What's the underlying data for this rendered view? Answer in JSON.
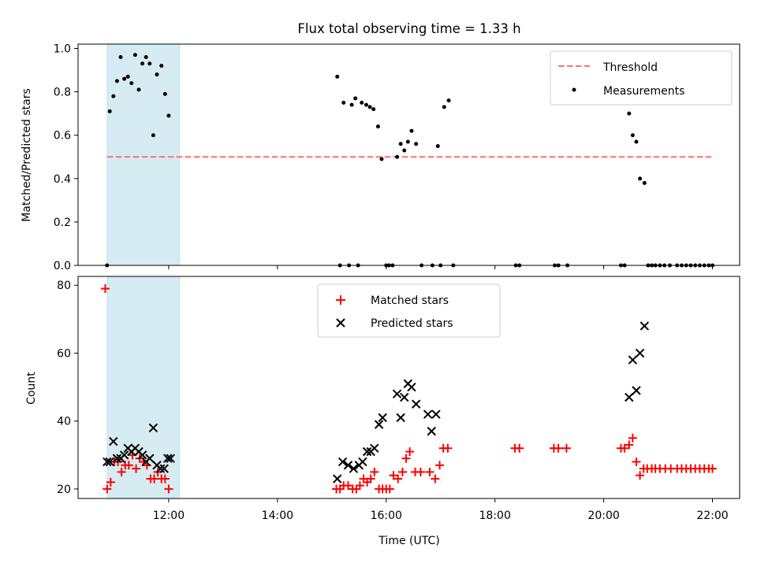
{
  "figure": {
    "title": "Flux total observing time = 1.33 h",
    "xlabel": "Time (UTC)"
  },
  "chart_data": [
    {
      "type": "scatter",
      "ylabel": "Matched/Predicted stars",
      "xlim": [
        "10:20",
        "22:30"
      ],
      "ylim": [
        0,
        1.02
      ],
      "yticks": [
        "0.0",
        "0.2",
        "0.4",
        "0.6",
        "0.8",
        "1.0"
      ],
      "xticks": [
        "12:00",
        "14:00",
        "16:00",
        "18:00",
        "20:00",
        "22:00"
      ],
      "shaded_span": [
        "10:52",
        "12:12"
      ],
      "grid": false,
      "legend": {
        "position": "top-right",
        "entries": [
          "Threshold",
          "Measurements"
        ]
      },
      "threshold": {
        "name": "Threshold",
        "value": 0.5,
        "x_range": [
          "10:52",
          "22:00"
        ],
        "color": "#ff6f6f"
      },
      "series": [
        {
          "name": "Measurements",
          "color": "#000000",
          "points": [
            [
              "10:52",
              0.0
            ],
            [
              "10:55",
              0.71
            ],
            [
              "10:59",
              0.78
            ],
            [
              "11:03",
              0.85
            ],
            [
              "11:07",
              0.96
            ],
            [
              "11:11",
              0.86
            ],
            [
              "11:15",
              0.87
            ],
            [
              "11:19",
              0.84
            ],
            [
              "11:23",
              0.97
            ],
            [
              "11:27",
              0.81
            ],
            [
              "11:31",
              0.93
            ],
            [
              "11:35",
              0.96
            ],
            [
              "11:39",
              0.93
            ],
            [
              "11:43",
              0.6
            ],
            [
              "11:47",
              0.88
            ],
            [
              "11:52",
              0.92
            ],
            [
              "11:56",
              0.79
            ],
            [
              "12:00",
              0.69
            ],
            [
              "15:06",
              0.87
            ],
            [
              "15:09",
              0.0
            ],
            [
              "15:13",
              0.75
            ],
            [
              "15:19",
              0.0
            ],
            [
              "15:22",
              0.74
            ],
            [
              "15:26",
              0.77
            ],
            [
              "15:29",
              0.0
            ],
            [
              "15:33",
              0.75
            ],
            [
              "15:38",
              0.74
            ],
            [
              "15:42",
              0.73
            ],
            [
              "15:46",
              0.72
            ],
            [
              "15:51",
              0.64
            ],
            [
              "15:55",
              0.49
            ],
            [
              "16:00",
              0.0
            ],
            [
              "16:03",
              0.0
            ],
            [
              "16:07",
              0.0
            ],
            [
              "16:12",
              0.5
            ],
            [
              "16:16",
              0.56
            ],
            [
              "16:20",
              0.53
            ],
            [
              "16:24",
              0.57
            ],
            [
              "16:28",
              0.62
            ],
            [
              "16:33",
              0.56
            ],
            [
              "16:39",
              0.0
            ],
            [
              "16:51",
              0.0
            ],
            [
              "16:57",
              0.55
            ],
            [
              "17:00",
              0.0
            ],
            [
              "17:04",
              0.73
            ],
            [
              "17:09",
              0.76
            ],
            [
              "17:14",
              0.0
            ],
            [
              "18:23",
              0.0
            ],
            [
              "18:27",
              0.0
            ],
            [
              "19:06",
              0.0
            ],
            [
              "19:10",
              0.0
            ],
            [
              "19:20",
              0.0
            ],
            [
              "20:19",
              0.0
            ],
            [
              "20:23",
              0.0
            ],
            [
              "20:28",
              0.7
            ],
            [
              "20:32",
              0.6
            ],
            [
              "20:36",
              0.57
            ],
            [
              "20:40",
              0.4
            ],
            [
              "20:45",
              0.38
            ],
            [
              "20:49",
              0.0
            ],
            [
              "20:53",
              0.0
            ],
            [
              "20:57",
              0.0
            ],
            [
              "21:02",
              0.0
            ],
            [
              "21:07",
              0.0
            ],
            [
              "21:13",
              0.0
            ],
            [
              "21:21",
              0.0
            ],
            [
              "21:26",
              0.0
            ],
            [
              "21:31",
              0.0
            ],
            [
              "21:36",
              0.0
            ],
            [
              "21:41",
              0.0
            ],
            [
              "21:46",
              0.0
            ],
            [
              "21:51",
              0.0
            ],
            [
              "21:56",
              0.0
            ],
            [
              "22:00",
              0.0
            ]
          ]
        }
      ]
    },
    {
      "type": "scatter",
      "ylabel": "Count",
      "xlabel": "Time (UTC)",
      "xlim": [
        "10:20",
        "22:30"
      ],
      "ylim": [
        17.2,
        82.6
      ],
      "yticks": [
        "20",
        "40",
        "60",
        "80"
      ],
      "xticks": [
        "12:00",
        "14:00",
        "16:00",
        "18:00",
        "20:00",
        "22:00"
      ],
      "shaded_span": [
        "10:52",
        "12:12"
      ],
      "grid": false,
      "legend": {
        "position": "top-center",
        "entries": [
          "Matched stars",
          "Predicted stars"
        ]
      },
      "series": [
        {
          "name": "Matched stars",
          "marker": "plus",
          "color": "#ff0000",
          "points": [
            [
              "10:50",
              79
            ],
            [
              "10:52",
              20
            ],
            [
              "10:56",
              22
            ],
            [
              "11:00",
              28
            ],
            [
              "11:04",
              28
            ],
            [
              "11:08",
              25
            ],
            [
              "11:12",
              27
            ],
            [
              "11:16",
              27
            ],
            [
              "11:20",
              30
            ],
            [
              "11:24",
              26
            ],
            [
              "11:28",
              29
            ],
            [
              "11:32",
              28
            ],
            [
              "11:36",
              27
            ],
            [
              "11:40",
              23
            ],
            [
              "11:44",
              23
            ],
            [
              "11:48",
              25
            ],
            [
              "11:52",
              23
            ],
            [
              "11:56",
              23
            ],
            [
              "12:00",
              20
            ],
            [
              "15:05",
              20
            ],
            [
              "15:09",
              20
            ],
            [
              "15:13",
              21
            ],
            [
              "15:18",
              21
            ],
            [
              "15:23",
              20
            ],
            [
              "15:27",
              20
            ],
            [
              "15:31",
              21
            ],
            [
              "15:35",
              23
            ],
            [
              "15:39",
              22
            ],
            [
              "15:43",
              23
            ],
            [
              "15:47",
              25
            ],
            [
              "15:52",
              20
            ],
            [
              "15:56",
              20
            ],
            [
              "16:00",
              20
            ],
            [
              "16:04",
              20
            ],
            [
              "16:08",
              24
            ],
            [
              "16:13",
              23
            ],
            [
              "16:18",
              25
            ],
            [
              "16:22",
              29
            ],
            [
              "16:26",
              31
            ],
            [
              "16:32",
              25
            ],
            [
              "16:38",
              25
            ],
            [
              "16:48",
              25
            ],
            [
              "16:54",
              23
            ],
            [
              "16:59",
              27
            ],
            [
              "17:03",
              32
            ],
            [
              "17:08",
              32
            ],
            [
              "18:22",
              32
            ],
            [
              "18:27",
              32
            ],
            [
              "19:05",
              32
            ],
            [
              "19:10",
              32
            ],
            [
              "19:19",
              32
            ],
            [
              "20:19",
              32
            ],
            [
              "20:23",
              32
            ],
            [
              "20:28",
              33
            ],
            [
              "20:32",
              35
            ],
            [
              "20:36",
              28
            ],
            [
              "20:40",
              24
            ],
            [
              "20:44",
              26
            ],
            [
              "20:48",
              26
            ],
            [
              "20:53",
              26
            ],
            [
              "20:57",
              26
            ],
            [
              "21:02",
              26
            ],
            [
              "21:08",
              26
            ],
            [
              "21:14",
              26
            ],
            [
              "21:21",
              26
            ],
            [
              "21:26",
              26
            ],
            [
              "21:31",
              26
            ],
            [
              "21:36",
              26
            ],
            [
              "21:41",
              26
            ],
            [
              "21:46",
              26
            ],
            [
              "21:51",
              26
            ],
            [
              "21:56",
              26
            ],
            [
              "22:00",
              26
            ]
          ]
        },
        {
          "name": "Predicted stars",
          "marker": "x",
          "color": "#000000",
          "points": [
            [
              "10:52",
              28
            ],
            [
              "10:55",
              28
            ],
            [
              "10:59",
              34
            ],
            [
              "11:03",
              29
            ],
            [
              "11:07",
              29
            ],
            [
              "11:11",
              30
            ],
            [
              "11:15",
              32
            ],
            [
              "11:19",
              31
            ],
            [
              "11:23",
              32
            ],
            [
              "11:27",
              31
            ],
            [
              "11:31",
              30
            ],
            [
              "11:35",
              28
            ],
            [
              "11:39",
              29
            ],
            [
              "11:43",
              38
            ],
            [
              "11:47",
              27
            ],
            [
              "11:51",
              26
            ],
            [
              "11:55",
              26
            ],
            [
              "11:59",
              29
            ],
            [
              "12:02",
              29
            ],
            [
              "15:06",
              23
            ],
            [
              "15:12",
              28
            ],
            [
              "15:18",
              27
            ],
            [
              "15:24",
              26
            ],
            [
              "15:30",
              27
            ],
            [
              "15:34",
              28
            ],
            [
              "15:39",
              31
            ],
            [
              "15:43",
              31
            ],
            [
              "15:47",
              32
            ],
            [
              "15:52",
              39
            ],
            [
              "15:56",
              41
            ],
            [
              "16:12",
              48
            ],
            [
              "16:16",
              41
            ],
            [
              "16:20",
              47
            ],
            [
              "16:24",
              51
            ],
            [
              "16:28",
              50
            ],
            [
              "16:33",
              45
            ],
            [
              "16:46",
              42
            ],
            [
              "16:50",
              37
            ],
            [
              "16:55",
              42
            ],
            [
              "20:28",
              47
            ],
            [
              "20:32",
              58
            ],
            [
              "20:36",
              49
            ],
            [
              "20:40",
              60
            ],
            [
              "20:45",
              68
            ]
          ]
        }
      ]
    }
  ],
  "colors": {
    "shade": "#add8e6",
    "threshold": "#ff6f6f",
    "measurements": "#000000",
    "matched": "#ff0000",
    "predicted": "#000000"
  }
}
